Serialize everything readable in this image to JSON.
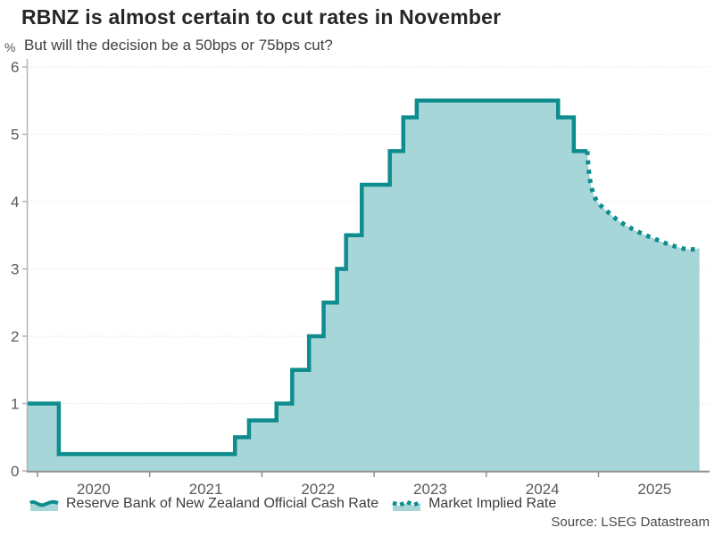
{
  "header": {
    "title": "RBNZ is almost certain to cut rates in November",
    "subtitle": "But will the decision be a 50bps or 75bps cut?"
  },
  "colors": {
    "line": "#0e8c8e",
    "fill": "#a6d6d7",
    "grid": "#e2e2e2",
    "y_axis": "#b3b3b3",
    "x_axis": "#8f8f8f",
    "tick_text": "#595959"
  },
  "chart_data": {
    "type": "line",
    "title": "RBNZ is almost certain to cut rates in November",
    "subtitle": "But will the decision be a 50bps or 75bps cut?",
    "ylabel": "%",
    "ylim": [
      0,
      6
    ],
    "yticks": [
      0,
      1,
      2,
      3,
      4,
      5,
      6
    ],
    "xticks": [
      2020,
      2021,
      2022,
      2023,
      2024,
      2025
    ],
    "x_range": [
      2019.9,
      2025.95
    ],
    "grid": "horizontal-dotted",
    "legend_position": "bottom",
    "source": "Source: LSEG Datastream",
    "series": [
      {
        "name": "Reserve Bank of New Zealand Official Cash Rate",
        "type": "step",
        "line_style": "solid",
        "points": [
          [
            2019.905,
            1.0
          ],
          [
            2020.19,
            0.25
          ],
          [
            2021.76,
            0.5
          ],
          [
            2021.885,
            0.75
          ],
          [
            2022.13,
            1.0
          ],
          [
            2022.27,
            1.5
          ],
          [
            2022.42,
            2.0
          ],
          [
            2022.55,
            2.5
          ],
          [
            2022.67,
            3.0
          ],
          [
            2022.75,
            3.5
          ],
          [
            2022.89,
            4.25
          ],
          [
            2023.14,
            4.75
          ],
          [
            2023.26,
            5.25
          ],
          [
            2023.38,
            5.5
          ],
          [
            2024.64,
            5.25
          ],
          [
            2024.78,
            4.75
          ],
          [
            2024.9,
            4.75
          ]
        ]
      },
      {
        "name": "Market Implied Rate",
        "type": "line",
        "line_style": "dotted",
        "points": [
          [
            2024.9,
            4.75
          ],
          [
            2024.91,
            4.5
          ],
          [
            2024.93,
            4.25
          ],
          [
            2024.96,
            4.08
          ],
          [
            2025.0,
            3.97
          ],
          [
            2025.06,
            3.88
          ],
          [
            2025.12,
            3.79
          ],
          [
            2025.19,
            3.7
          ],
          [
            2025.26,
            3.63
          ],
          [
            2025.34,
            3.56
          ],
          [
            2025.42,
            3.5
          ],
          [
            2025.51,
            3.44
          ],
          [
            2025.6,
            3.38
          ],
          [
            2025.69,
            3.33
          ],
          [
            2025.78,
            3.29
          ],
          [
            2025.86,
            3.29
          ],
          [
            2025.9,
            3.31
          ]
        ]
      }
    ]
  }
}
